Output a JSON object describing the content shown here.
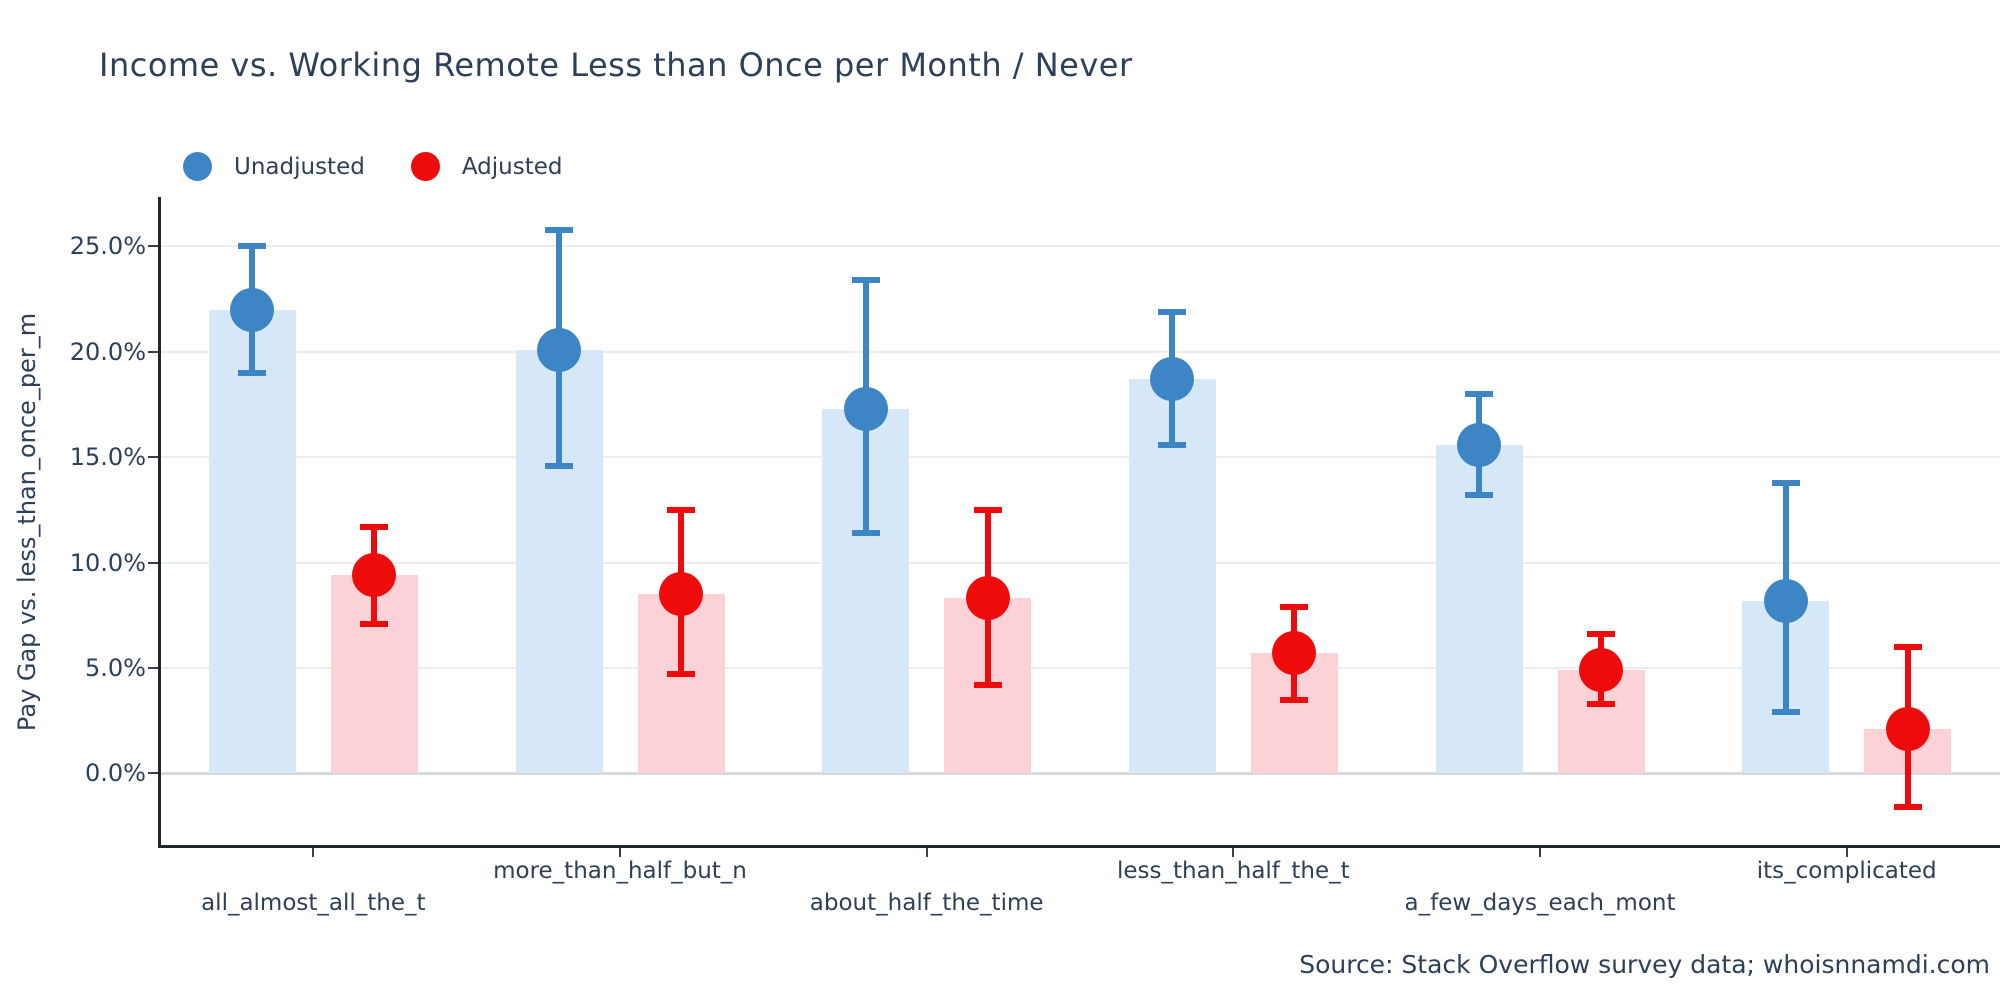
{
  "title": "Income vs. Working Remote Less than Once per Month / Never",
  "legend": {
    "items": [
      {
        "label": "Unadjusted",
        "color": "#3d85c4"
      },
      {
        "label": "Adjusted",
        "color": "#ee0b0b"
      }
    ]
  },
  "source_note": "Source: Stack Overflow survey data; whoisnnamdi.com",
  "chart_data": {
    "type": "bar",
    "title": "Income vs. Working Remote Less than Once per Month / Never",
    "xlabel": "",
    "ylabel": "Pay Gap vs. less_than_once_per_m",
    "categories": [
      "all_almost_all_the_t",
      "more_than_half_but_n",
      "about_half_the_time",
      "less_than_half_the_t",
      "a_few_days_each_mont",
      "its_complicated"
    ],
    "series": [
      {
        "name": "Unadjusted",
        "marker_color": "#3d85c4",
        "bar_color": "#d6e8f7",
        "values": [
          22.0,
          20.1,
          17.3,
          18.7,
          15.6,
          8.2
        ],
        "ci_low": [
          19.0,
          14.6,
          11.4,
          15.6,
          13.2,
          2.9
        ],
        "ci_high": [
          25.0,
          25.8,
          23.4,
          21.9,
          18.0,
          13.8
        ]
      },
      {
        "name": "Adjusted",
        "marker_color": "#ee0b0b",
        "bar_color": "#fcd2d6",
        "values": [
          9.4,
          8.5,
          8.3,
          5.7,
          4.9,
          2.1
        ],
        "ci_low": [
          7.1,
          4.7,
          4.2,
          3.5,
          3.3,
          -1.6
        ],
        "ci_high": [
          11.7,
          12.5,
          12.5,
          7.9,
          6.6,
          6.0
        ]
      }
    ],
    "yticks": [
      0,
      5,
      10,
      15,
      20,
      25
    ],
    "ytick_labels": [
      "0.0%",
      "5.0%",
      "10.0%",
      "15.0%",
      "20.0%",
      "25.0%"
    ],
    "ylim": [
      -3.4,
      27.3
    ],
    "grid": true,
    "legend_position": "top-left",
    "error_bars": true
  }
}
